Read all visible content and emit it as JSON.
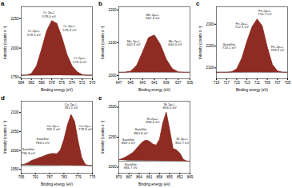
{
  "chart_data": [
    {
      "type": "line",
      "title": "a",
      "x_label": "Binding energy (eV)",
      "y_label": "Intensity (counts s⁻¹)",
      "x": [
        584,
        583,
        582,
        581,
        580,
        579,
        578,
        577,
        576,
        575,
        574,
        573,
        572,
        571,
        570
      ],
      "xlim": [
        584,
        570
      ],
      "xticks": [
        584,
        582,
        580,
        578,
        576,
        574,
        572,
        570
      ],
      "ylim": [
        1740,
        2350
      ],
      "yticks": [
        1750,
        2000,
        2250
      ],
      "series": [
        {
          "color": "#8e2b22",
          "values": [
            1770,
            1771,
            1784,
            1849,
            1990,
            2146,
            2233,
            2210,
            2093,
            1946,
            1849,
            1799,
            1775,
            1770,
            1770
          ]
        },
        {
          "color": "#888888",
          "values": [
            1770,
            1771,
            1784,
            1842,
            1932,
            1932,
            1842,
            1784,
            1771,
            1770,
            1770,
            1770,
            1770,
            1770,
            1770
          ]
        },
        {
          "color": "#888888",
          "values": [
            1770,
            1770,
            1770,
            1777,
            1827,
            1968,
            2070,
            1968,
            1827,
            1777,
            1770,
            1770,
            1770,
            1770,
            1770
          ]
        },
        {
          "color": "#888888",
          "values": [
            1770,
            1770,
            1770,
            1770,
            1771,
            1786,
            1861,
            1994,
            2014,
            1887,
            1793,
            1772,
            1770,
            1770,
            1770
          ]
        },
        {
          "color": "#888888",
          "values": [
            1770,
            1770,
            1770,
            1770,
            1770,
            1770,
            1770,
            1774,
            1791,
            1822,
            1826,
            1797,
            1775,
            1770,
            1770
          ]
        }
      ],
      "annotations": [
        {
          "text": "Cr 2p₃/₂\n579.5 eV",
          "x": 581.5,
          "y": 2130
        },
        {
          "text": "Cr 2p₃/₂\n578.0 eV",
          "x": 578.5,
          "y": 2285
        },
        {
          "text": "Cr 2p₃/₂\n576.4 eV",
          "x": 574.5,
          "y": 2170
        },
        {
          "text": "Cr 2p₃/₂\n574.4 eV",
          "x": 572.5,
          "y": 1900
        }
      ]
    },
    {
      "type": "line",
      "title": "b",
      "x_label": "Binding energy (eV)",
      "y_label": "Intensity (counts s⁻¹)",
      "x": [
        647,
        646,
        645,
        644,
        643,
        642,
        641,
        640,
        639,
        638,
        637,
        636,
        635
      ],
      "xlim": [
        647,
        635
      ],
      "xticks": [
        647,
        645,
        643,
        641,
        639,
        637,
        635
      ],
      "ylim": [
        1990,
        2210
      ],
      "yticks": [
        2000,
        2100,
        2200
      ],
      "series": [
        {
          "color": "#8e2b22",
          "values": [
            2010,
            2010,
            2013,
            2031,
            2072,
            2116,
            2124,
            2095,
            2050,
            2021,
            2011,
            2010,
            2010
          ]
        },
        {
          "color": "#888888",
          "values": [
            2010,
            2010,
            2013,
            2028,
            2053,
            2057,
            2033,
            2015,
            2010,
            2010,
            2010,
            2010,
            2010
          ]
        },
        {
          "color": "#888888",
          "values": [
            2010,
            2010,
            2010,
            2013,
            2028,
            2059,
            2068,
            2040,
            2017,
            2011,
            2010,
            2010,
            2010
          ]
        },
        {
          "color": "#888888",
          "values": [
            2010,
            2010,
            2010,
            2010,
            2011,
            2020,
            2043,
            2060,
            2043,
            2020,
            2011,
            2010,
            2010
          ]
        }
      ],
      "annotations": [
        {
          "text": "Mn 2p₃/₂\n642.4 eV",
          "x": 644.5,
          "y": 2100
        },
        {
          "text": "Mn 2p₃/₂\n641.3 eV",
          "x": 641.3,
          "y": 2180
        },
        {
          "text": "Mn 2p₃/₂\n640.0 eV",
          "x": 637.5,
          "y": 2100
        }
      ]
    },
    {
      "type": "line",
      "title": "c",
      "x_label": "Binding energy (eV)",
      "y_label": "Intensity (counts s⁻¹)",
      "x": [
        719,
        718,
        717,
        716,
        715,
        714,
        713,
        712,
        711,
        710,
        709,
        708,
        707,
        706,
        705
      ],
      "xlim": [
        719,
        705
      ],
      "xticks": [
        719,
        717,
        715,
        713,
        711,
        709,
        707,
        705
      ],
      "ylim": [
        2050,
        2380
      ],
      "yticks": [
        2100,
        2200,
        2300
      ],
      "series": [
        {
          "color": "#8e2b22",
          "values": [
            2080,
            2080,
            2080,
            2082,
            2096,
            2145,
            2222,
            2288,
            2324,
            2293,
            2196,
            2116,
            2086,
            2080,
            2080
          ]
        },
        {
          "color": "#888888",
          "values": [
            2080,
            2080,
            2080,
            2082,
            2093,
            2123,
            2140,
            2116,
            2090,
            2081,
            2080,
            2080,
            2080,
            2080,
            2080
          ]
        },
        {
          "color": "#888888",
          "values": [
            2080,
            2080,
            2080,
            2080,
            2083,
            2100,
            2144,
            2170,
            2134,
            2094,
            2082,
            2080,
            2080,
            2080,
            2080
          ]
        },
        {
          "color": "#888888",
          "values": [
            2080,
            2080,
            2080,
            2080,
            2080,
            2082,
            2097,
            2155,
            2224,
            2203,
            2125,
            2088,
            2081,
            2080,
            2080
          ]
        },
        {
          "color": "#888888",
          "values": [
            2080,
            2080,
            2080,
            2080,
            2080,
            2080,
            2081,
            2087,
            2116,
            2155,
            2149,
            2108,
            2085,
            2080,
            2080
          ]
        }
      ],
      "annotations": [
        {
          "text": "Satellite\n713.1 eV",
          "x": 716.5,
          "y": 2200
        },
        {
          "text": "Fe 2p₃/₂\n712.1 eV",
          "x": 714,
          "y": 2295
        },
        {
          "text": "Fe 2p₃/₂\n710.7 eV",
          "x": 709.5,
          "y": 2355
        },
        {
          "text": "Fe 2p₃/₂\n709.6 eV",
          "x": 707,
          "y": 2190
        }
      ]
    },
    {
      "type": "line",
      "title": "d",
      "x_label": "Binding energy (eV)",
      "y_label": "Intensity (counts s⁻¹)",
      "x": [
        795,
        794,
        793,
        792,
        791,
        790,
        789,
        788,
        787,
        786,
        785,
        784,
        783,
        782,
        781,
        780,
        779,
        778,
        777,
        776,
        775
      ],
      "xlim": [
        795,
        775
      ],
      "xticks": [
        795,
        791,
        787,
        783,
        779,
        775
      ],
      "ylim": [
        1940,
        2130
      ],
      "yticks": [
        1950,
        2000,
        2050,
        2100
      ],
      "series": [
        {
          "color": "#8e2b22",
          "values": [
            1962,
            1964,
            1968,
            1974,
            1977,
            1981,
            1984,
            1988,
            1991,
            1992,
            1991,
            2001,
            2029,
            2068,
            2095,
            2076,
            2024,
            1981,
            1963,
            1960,
            1960
          ]
        },
        {
          "color": "#888888",
          "values": [
            1962,
            1964,
            1968,
            1973,
            1975,
            1974,
            1970,
            1966,
            1962,
            1961,
            1960,
            1960,
            1960,
            1960,
            1960,
            1960,
            1960,
            1960,
            1960,
            1960,
            1960
          ]
        },
        {
          "color": "#888888",
          "values": [
            1960,
            1960,
            1960,
            1961,
            1962,
            1967,
            1974,
            1982,
            1989,
            1989,
            1982,
            1974,
            1967,
            1962,
            1961,
            1960,
            1960,
            1960,
            1960,
            1960,
            1960
          ]
        },
        {
          "color": "#888888",
          "values": [
            1960,
            1960,
            1960,
            1960,
            1960,
            1960,
            1960,
            1960,
            1960,
            1962,
            1968,
            1981,
            1996,
            1999,
            1988,
            1972,
            1964,
            1961,
            1960,
            1960,
            1960
          ]
        },
        {
          "color": "#888888",
          "values": [
            1960,
            1960,
            1960,
            1960,
            1960,
            1960,
            1960,
            1960,
            1960,
            1960,
            1961,
            1966,
            1984,
            2015,
            2030,
            2009,
            1979,
            1964,
            1960,
            1960,
            1960
          ]
        },
        {
          "color": "#888888",
          "values": [
            1960,
            1960,
            1960,
            1960,
            1960,
            1960,
            1960,
            1960,
            1960,
            1960,
            1960,
            1960,
            1962,
            1972,
            1996,
            2015,
            2001,
            1976,
            1963,
            1960,
            1960
          ]
        }
      ],
      "annotations": [
        {
          "text": "Satellite\n790.8 eV",
          "x": 793,
          "y": 1998
        },
        {
          "text": "Satellite\n786.5 eV",
          "x": 789,
          "y": 2025
        },
        {
          "text": "Co 2p₃/₂\n782.3 eV",
          "x": 786,
          "y": 2060
        },
        {
          "text": "Co 2p₃/₂\n781.1 eV",
          "x": 781,
          "y": 2117
        },
        {
          "text": "Co 2p₃/₂\n779.9 eV",
          "x": 777,
          "y": 2060
        }
      ]
    },
    {
      "type": "line",
      "title": "e",
      "x_label": "Binding energy (eV)",
      "y_label": "Intensity (counts s⁻¹)",
      "x": [
        870,
        869,
        868,
        867,
        866,
        865,
        864,
        863,
        862,
        861,
        860,
        859,
        858,
        857,
        856,
        855,
        854,
        853,
        852,
        851,
        850,
        849
      ],
      "xlim": [
        870,
        849
      ],
      "xticks": [
        870,
        867,
        864,
        861,
        858,
        855,
        852,
        849
      ],
      "ylim": [
        1950,
        2550
      ],
      "yticks": [
        2000,
        2250,
        2500
      ],
      "series": [
        {
          "color": "#8e2b22",
          "values": [
            2060,
            2072,
            2085,
            2102,
            2120,
            2148,
            2182,
            2211,
            2226,
            2217,
            2193,
            2184,
            2232,
            2372,
            2459,
            2311,
            2155,
            2145,
            2117,
            2065,
            2051,
            2050
          ]
        },
        {
          "color": "#888888",
          "values": [
            2060,
            2071,
            2082,
            2090,
            2088,
            2078,
            2066,
            2057,
            2052,
            2051,
            2050,
            2050,
            2050,
            2050,
            2050,
            2050,
            2050,
            2050,
            2050,
            2050,
            2050,
            2050
          ]
        },
        {
          "color": "#888888",
          "values": [
            2050,
            2051,
            2053,
            2062,
            2082,
            2118,
            2156,
            2170,
            2150,
            2111,
            2078,
            2059,
            2052,
            2050,
            2050,
            2050,
            2050,
            2050,
            2050,
            2050,
            2050,
            2050
          ]
        },
        {
          "color": "#888888",
          "values": [
            2050,
            2050,
            2050,
            2050,
            2050,
            2052,
            2060,
            2084,
            2123,
            2149,
            2137,
            2099,
            2068,
            2054,
            2051,
            2050,
            2050,
            2050,
            2050,
            2050,
            2050,
            2050
          ]
        },
        {
          "color": "#888888",
          "values": [
            2050,
            2050,
            2050,
            2050,
            2050,
            2050,
            2050,
            2050,
            2051,
            2056,
            2078,
            2117,
            2140,
            2117,
            2078,
            2056,
            2051,
            2050,
            2050,
            2050,
            2050,
            2050
          ]
        },
        {
          "color": "#888888",
          "values": [
            2050,
            2050,
            2050,
            2050,
            2050,
            2050,
            2050,
            2050,
            2050,
            2050,
            2050,
            2059,
            2122,
            2301,
            2430,
            2301,
            2122,
            2059,
            2050,
            2050,
            2050,
            2050
          ]
        },
        {
          "color": "#888888",
          "values": [
            2050,
            2050,
            2050,
            2050,
            2050,
            2050,
            2050,
            2050,
            2050,
            2050,
            2050,
            2050,
            2050,
            2050,
            2050,
            2054,
            2082,
            2136,
            2117,
            2065,
            2051,
            2050
          ]
        }
      ],
      "annotations": [
        {
          "text": "Satellite\n866.7 eV",
          "x": 866.5,
          "y": 2010
        },
        {
          "text": "Satellite\n863.1 eV",
          "x": 867.2,
          "y": 2215
        },
        {
          "text": "Satellite\n860.8 eV",
          "x": 863.5,
          "y": 2300
        },
        {
          "text": "Ni 2p₃/₂\n858.0 eV",
          "x": 860,
          "y": 2390
        },
        {
          "text": "Ni 2p₃/₂\n856.0 eV",
          "x": 855,
          "y": 2510
        },
        {
          "text": "Ni 2p₃/₂\n852.7 eV",
          "x": 851.3,
          "y": 2220
        }
      ]
    }
  ]
}
